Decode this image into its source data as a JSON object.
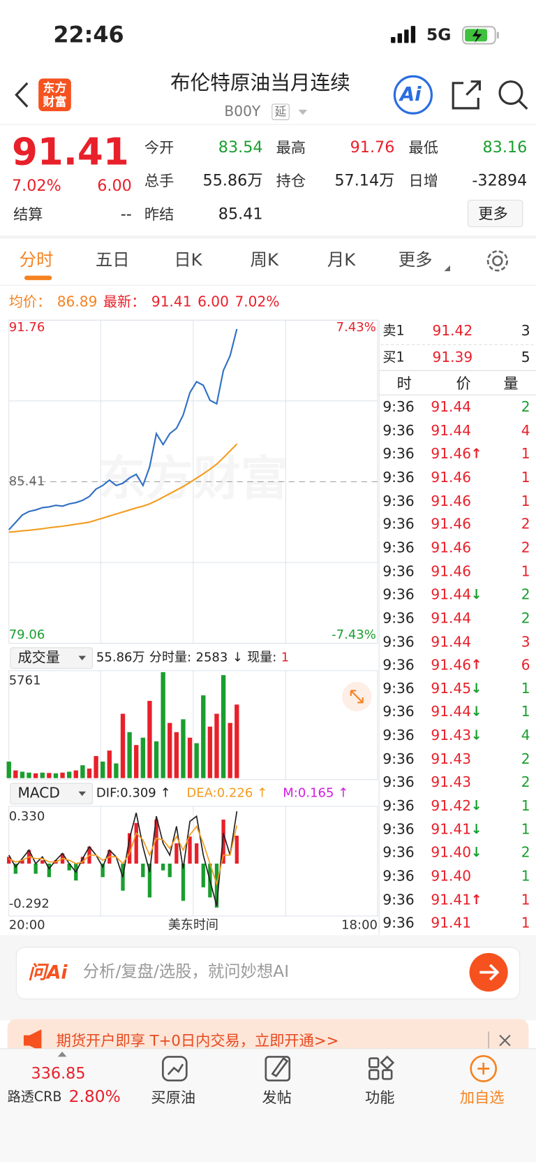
{
  "status_bar": {
    "time": "22:46",
    "network": "5G"
  },
  "header": {
    "title": "布伦特原油当月连续",
    "code": "B00Y",
    "tag": "延",
    "logo": "东方财富",
    "ai": "Ai"
  },
  "quote": {
    "price": "91.41",
    "change_pct": "7.02%",
    "change": "6.00",
    "fields": [
      {
        "label": "今开",
        "value": "83.54",
        "color": "#1a9e2f"
      },
      {
        "label": "最高",
        "value": "91.76",
        "color": "#e8202a"
      },
      {
        "label": "最低",
        "value": "83.16",
        "color": "#1a9e2f"
      },
      {
        "label": "总手",
        "value": "55.86万"
      },
      {
        "label": "持仓",
        "value": "57.14万"
      },
      {
        "label": "日增",
        "value": "-32894"
      },
      {
        "label": "结算",
        "value": "--"
      },
      {
        "label": "昨结",
        "value": "85.41"
      }
    ],
    "more": "更多"
  },
  "tabs": [
    "分时",
    "五日",
    "日K",
    "周K",
    "月K",
    "更多"
  ],
  "info": {
    "avg_label": "均价：",
    "avg": "86.89",
    "last_label": "最新：",
    "last": "91.41",
    "change": "6.00",
    "change_pct": "7.02%"
  },
  "chart_data": [
    {
      "type": "line",
      "xlim": [
        0,
        1320
      ],
      "xticks": [
        {
          "value": 0,
          "label": "20:00"
        },
        {
          "value": 1320,
          "label": "18:00"
        }
      ],
      "xlabel": "美东时间",
      "x": [
        0,
        24,
        48,
        72,
        96,
        120,
        144,
        168,
        192,
        216,
        240,
        264,
        288,
        312,
        336,
        360,
        384,
        408,
        432,
        456,
        480,
        504,
        528,
        552,
        576,
        600,
        624,
        648,
        672,
        696,
        720,
        744,
        768,
        792,
        816
      ],
      "ylim": [
        79.06,
        91.76
      ],
      "yticks": [
        79.06,
        85.41,
        91.76
      ],
      "y2lim": [
        -7.43,
        7.43
      ],
      "y2ticks": [
        {
          "value": -7.43,
          "label": "-7.43%"
        },
        {
          "value": 7.43,
          "label": "7.43%"
        }
      ],
      "series": [
        {
          "color": "#2f6fc4",
          "values": [
            83.52,
            83.81,
            84.1,
            84.24,
            84.3,
            84.39,
            84.42,
            84.48,
            84.45,
            84.54,
            84.59,
            84.68,
            84.83,
            85.12,
            85.26,
            85.47,
            85.26,
            85.35,
            85.56,
            85.7,
            85.26,
            85.99,
            87.3,
            86.87,
            87.3,
            87.51,
            88.03,
            88.91,
            89.34,
            89.2,
            88.61,
            88.47,
            89.78,
            90.36,
            91.41
          ]
        },
        {
          "color": "#f39c1e",
          "values": [
            83.43,
            83.45,
            83.48,
            83.5,
            83.53,
            83.56,
            83.6,
            83.63,
            83.66,
            83.7,
            83.74,
            83.78,
            83.82,
            83.9,
            83.98,
            84.06,
            84.14,
            84.22,
            84.3,
            84.38,
            84.45,
            84.54,
            84.66,
            84.8,
            84.94,
            85.08,
            85.22,
            85.38,
            85.55,
            85.72,
            85.9,
            86.1,
            86.35,
            86.62,
            86.89
          ]
        }
      ]
    },
    {
      "type": "bar",
      "xlim": [
        0,
        1320
      ],
      "x": [
        0,
        24,
        48,
        72,
        96,
        120,
        144,
        168,
        192,
        216,
        240,
        264,
        288,
        312,
        336,
        360,
        384,
        408,
        432,
        456,
        480,
        504,
        528,
        552,
        576,
        600,
        624,
        648,
        672,
        696,
        720,
        744,
        768,
        792,
        816
      ],
      "values": [
        900,
        420,
        350,
        300,
        260,
        300,
        280,
        260,
        300,
        350,
        420,
        700,
        520,
        1200,
        900,
        1500,
        800,
        3500,
        2500,
        1800,
        2200,
        4200,
        2000,
        5761,
        3000,
        2500,
        3200,
        2200,
        1900,
        4500,
        2800,
        3500,
        5600,
        3000,
        4000
      ],
      "colors": [
        "#1a9e2f",
        "#e8202a",
        "#1a9e2f",
        "#1a9e2f",
        "#e8202a",
        "#1a9e2f",
        "#e8202a",
        "#1a9e2f",
        "#e8202a",
        "#1a9e2f",
        "#e8202a",
        "#1a9e2f",
        "#e8202a",
        "#e8202a",
        "#1a9e2f",
        "#e8202a",
        "#1a9e2f",
        "#e8202a",
        "#1a9e2f",
        "#e8202a",
        "#1a9e2f",
        "#e8202a",
        "#1a9e2f",
        "#1a9e2f",
        "#e8202a",
        "#e8202a",
        "#1a9e2f",
        "#e8202a",
        "#1a9e2f",
        "#1a9e2f",
        "#e8202a",
        "#e8202a",
        "#1a9e2f",
        "#e8202a",
        "#e8202a"
      ],
      "ylim": [
        0,
        5761
      ],
      "yticks": [
        5761
      ]
    },
    {
      "type": "macd",
      "xlim": [
        0,
        1320
      ],
      "x": [
        0,
        24,
        48,
        72,
        96,
        120,
        144,
        168,
        192,
        216,
        240,
        264,
        288,
        312,
        336,
        360,
        384,
        408,
        432,
        456,
        480,
        504,
        528,
        552,
        576,
        600,
        624,
        648,
        672,
        696,
        720,
        744,
        768,
        792,
        816
      ],
      "ylim": [
        -0.292,
        0.33
      ],
      "yticks": [
        -0.292,
        {
          "value": 0.33,
          "label": "0.330"
        }
      ],
      "series": [
        {
          "color": "#222222",
          "values": [
            0.05,
            -0.02,
            0.03,
            0.08,
            0,
            0.04,
            -0.03,
            0.02,
            0.06,
            0,
            -0.05,
            0.03,
            0.1,
            0.05,
            -0.02,
            0.08,
            0.04,
            -0.08,
            0.15,
            0.3,
            0.1,
            -0.05,
            0.28,
            0.12,
            0.05,
            0.22,
            -0.03,
            0.25,
            0.28,
            0.05,
            -0.1,
            -0.25,
            0.18,
            0.05,
            0.309
          ]
        },
        {
          "color": "#f39c1e",
          "values": [
            0.03,
            0.01,
            0.02,
            0.04,
            0.03,
            0.03,
            0.01,
            0.01,
            0.03,
            0.02,
            0,
            0.01,
            0.05,
            0.05,
            0.02,
            0.04,
            0.04,
            0,
            0.06,
            0.18,
            0.14,
            0.05,
            0.15,
            0.14,
            0.09,
            0.16,
            0.08,
            0.17,
            0.22,
            0.12,
            0,
            -0.12,
            0.05,
            0.05,
            0.226
          ]
        }
      ],
      "bars": [
        0.04,
        -0.06,
        0.02,
        0.08,
        -0.06,
        0.02,
        -0.08,
        0.02,
        0.06,
        -0.04,
        -0.1,
        0.04,
        0.1,
        0,
        -0.08,
        0.08,
        0,
        -0.16,
        0.18,
        0.24,
        -0.08,
        -0.2,
        0.26,
        -0.04,
        -0.08,
        0.12,
        -0.22,
        0.16,
        0.12,
        -0.14,
        -0.2,
        -0.26,
        0.26,
        0,
        0.165
      ],
      "bar_up_color": "#e8202a",
      "bar_down_color": "#1a9e2f"
    }
  ],
  "volume_header": {
    "selector": "成交量",
    "total": "55.86万",
    "tick_label": "分时量:",
    "tick": "2583",
    "arrow": "↓",
    "now_label": "现量:",
    "now": "1"
  },
  "macd_header": {
    "selector": "MACD",
    "dif": "DIF:0.309 ↑",
    "dea": "DEA:0.226 ↑",
    "m": "M:0.165 ↑"
  },
  "order_book": [
    {
      "label": "卖1",
      "price": "91.42",
      "volume": "3"
    },
    {
      "label": "买1",
      "price": "91.39",
      "volume": "5"
    }
  ],
  "trades_header": [
    "时",
    "价",
    "量"
  ],
  "trades": [
    {
      "time": "9:36",
      "price": "91.44",
      "volume": 2,
      "color": "#1a9e2f"
    },
    {
      "time": "9:36",
      "price": "91.44",
      "volume": 4,
      "color": "#e8202a"
    },
    {
      "time": "9:36",
      "price": "91.46",
      "arrow": "↑",
      "volume": 1,
      "color": "#e8202a"
    },
    {
      "time": "9:36",
      "price": "91.46",
      "volume": 1,
      "color": "#e8202a"
    },
    {
      "time": "9:36",
      "price": "91.46",
      "volume": 1,
      "color": "#e8202a"
    },
    {
      "time": "9:36",
      "price": "91.46",
      "volume": 2,
      "color": "#e8202a"
    },
    {
      "time": "9:36",
      "price": "91.46",
      "volume": 2,
      "color": "#e8202a"
    },
    {
      "time": "9:36",
      "price": "91.46",
      "volume": 1,
      "color": "#e8202a"
    },
    {
      "time": "9:36",
      "price": "91.44",
      "arrow": "↓",
      "volume": 2,
      "color": "#1a9e2f"
    },
    {
      "time": "9:36",
      "price": "91.44",
      "volume": 2,
      "color": "#1a9e2f"
    },
    {
      "time": "9:36",
      "price": "91.44",
      "volume": 3,
      "color": "#e8202a"
    },
    {
      "time": "9:36",
      "price": "91.46",
      "arrow": "↑",
      "volume": 6,
      "color": "#e8202a"
    },
    {
      "time": "9:36",
      "price": "91.45",
      "arrow": "↓",
      "volume": 1,
      "color": "#1a9e2f"
    },
    {
      "time": "9:36",
      "price": "91.44",
      "arrow": "↓",
      "volume": 1,
      "color": "#1a9e2f"
    },
    {
      "time": "9:36",
      "price": "91.43",
      "arrow": "↓",
      "volume": 4,
      "color": "#1a9e2f"
    },
    {
      "time": "9:36",
      "price": "91.43",
      "volume": 2,
      "color": "#1a9e2f"
    },
    {
      "time": "9:36",
      "price": "91.43",
      "volume": 2,
      "color": "#1a9e2f"
    },
    {
      "time": "9:36",
      "price": "91.42",
      "arrow": "↓",
      "volume": 1,
      "color": "#1a9e2f"
    },
    {
      "time": "9:36",
      "price": "91.41",
      "arrow": "↓",
      "volume": 1,
      "color": "#1a9e2f"
    },
    {
      "time": "9:36",
      "price": "91.40",
      "arrow": "↓",
      "volume": 2,
      "color": "#1a9e2f"
    },
    {
      "time": "9:36",
      "price": "91.40",
      "volume": 1,
      "color": "#1a9e2f"
    },
    {
      "time": "9:36",
      "price": "91.41",
      "arrow": "↑",
      "volume": 1,
      "color": "#e8202a"
    },
    {
      "time": "9:36",
      "price": "91.41",
      "volume": 1,
      "color": "#e8202a"
    }
  ],
  "ask": {
    "logo": "问Ai",
    "placeholder": "分析/复盘/选股，就问妙想AI"
  },
  "banner": "期货开户即享 T+0日内交易，立即开通>>",
  "nav": {
    "index_value": "336.85",
    "index_name": "路透CRB",
    "index_change": "2.80%",
    "items": [
      "买原油",
      "发帖",
      "功能",
      "加自选"
    ]
  }
}
